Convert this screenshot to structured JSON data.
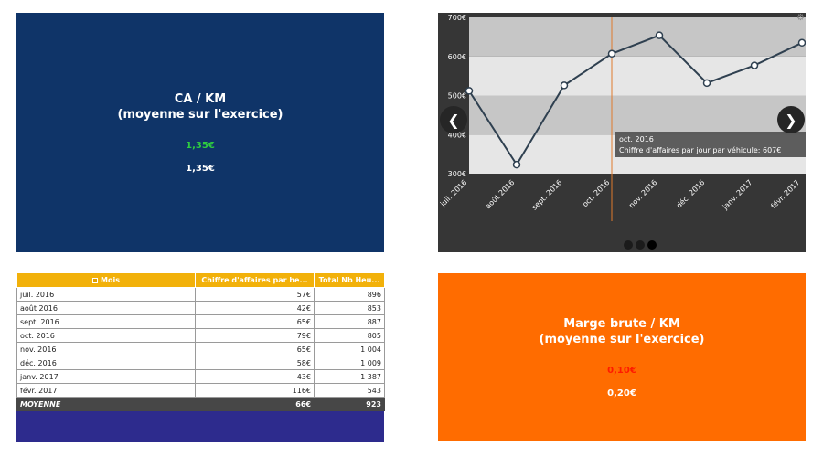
{
  "kpi_ca": {
    "title_line1": "CA / KM",
    "title_line2": "(moyenne sur l'exercice)",
    "value1": "1,35€",
    "value2": "1,35€",
    "bg_color": "#0f3468",
    "value1_color": "#2ecc40"
  },
  "kpi_marge": {
    "title_line1": "Marge brute / KM",
    "title_line2": "(moyenne sur l'exercice)",
    "value1": "0,10€",
    "value2": "0,20€",
    "bg_color": "#ff6c00",
    "value1_color": "#ff1a00"
  },
  "chart_data": {
    "type": "line",
    "categories": [
      "juil. 2016",
      "août 2016",
      "sept. 2016",
      "oct. 2016",
      "nov. 2016",
      "déc. 2016",
      "janv. 2017",
      "févr. 2017"
    ],
    "series": [
      {
        "values": [
          512,
          323,
          526,
          607,
          654,
          532,
          577,
          635
        ]
      }
    ],
    "ylim": [
      300,
      700
    ],
    "yticks": [
      "300€",
      "400€",
      "500€",
      "600€",
      "700€"
    ],
    "grid": true,
    "tooltip": {
      "category": "oct. 2016",
      "text": "Chiffre d'affaires par jour par véhicule: 607€"
    }
  },
  "carousel": {
    "prev_icon": "chevron-left-icon",
    "next_icon": "chevron-right-icon",
    "prev_glyph": "❮",
    "next_glyph": "❯",
    "gear_glyph": "⚙",
    "dots": 3,
    "active_dot": 2
  },
  "table": {
    "sort_icon": "sort-icon",
    "headers": [
      "Mois",
      "Chiffre d'affaires par he...",
      "Total Nb Heu..."
    ],
    "rows": [
      [
        "juil. 2016",
        "57€",
        "896"
      ],
      [
        "août 2016",
        "42€",
        "853"
      ],
      [
        "sept. 2016",
        "65€",
        "887"
      ],
      [
        "oct. 2016",
        "79€",
        "805"
      ],
      [
        "nov. 2016",
        "65€",
        "1 004"
      ],
      [
        "déc. 2016",
        "58€",
        "1 009"
      ],
      [
        "janv. 2017",
        "43€",
        "1 387"
      ],
      [
        "févr. 2017",
        "116€",
        "543"
      ]
    ],
    "footer": [
      "MOYENNE",
      "66€",
      "923"
    ]
  }
}
